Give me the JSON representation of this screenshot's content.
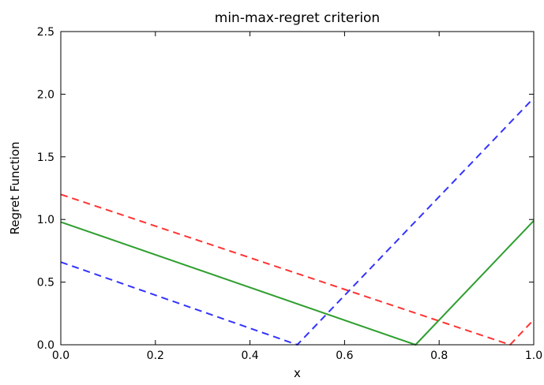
{
  "chart_data": {
    "type": "line",
    "title": "min-max-regret criterion",
    "xlabel": "x",
    "ylabel": "Regret Function",
    "xlim": [
      0.0,
      1.0
    ],
    "ylim": [
      0.0,
      2.5
    ],
    "xticks": [
      "0.0",
      "0.2",
      "0.4",
      "0.6",
      "0.8",
      "1.0"
    ],
    "yticks": [
      "0.0",
      "0.5",
      "1.0",
      "1.5",
      "2.0",
      "2.5"
    ],
    "grid": false,
    "legend": "none",
    "series": [
      {
        "color": "#ff3333",
        "style": "dashed",
        "x": [
          0.0,
          0.95,
          1.0
        ],
        "y": [
          1.2,
          0.0,
          0.2
        ]
      },
      {
        "color": "#3333ff",
        "style": "dashed",
        "x": [
          0.0,
          0.5,
          1.0
        ],
        "y": [
          0.66,
          0.0,
          1.97
        ]
      },
      {
        "color": "#2e9e2e",
        "style": "solid",
        "x": [
          0.0,
          0.75,
          1.0
        ],
        "y": [
          0.98,
          0.0,
          0.99
        ]
      }
    ]
  }
}
